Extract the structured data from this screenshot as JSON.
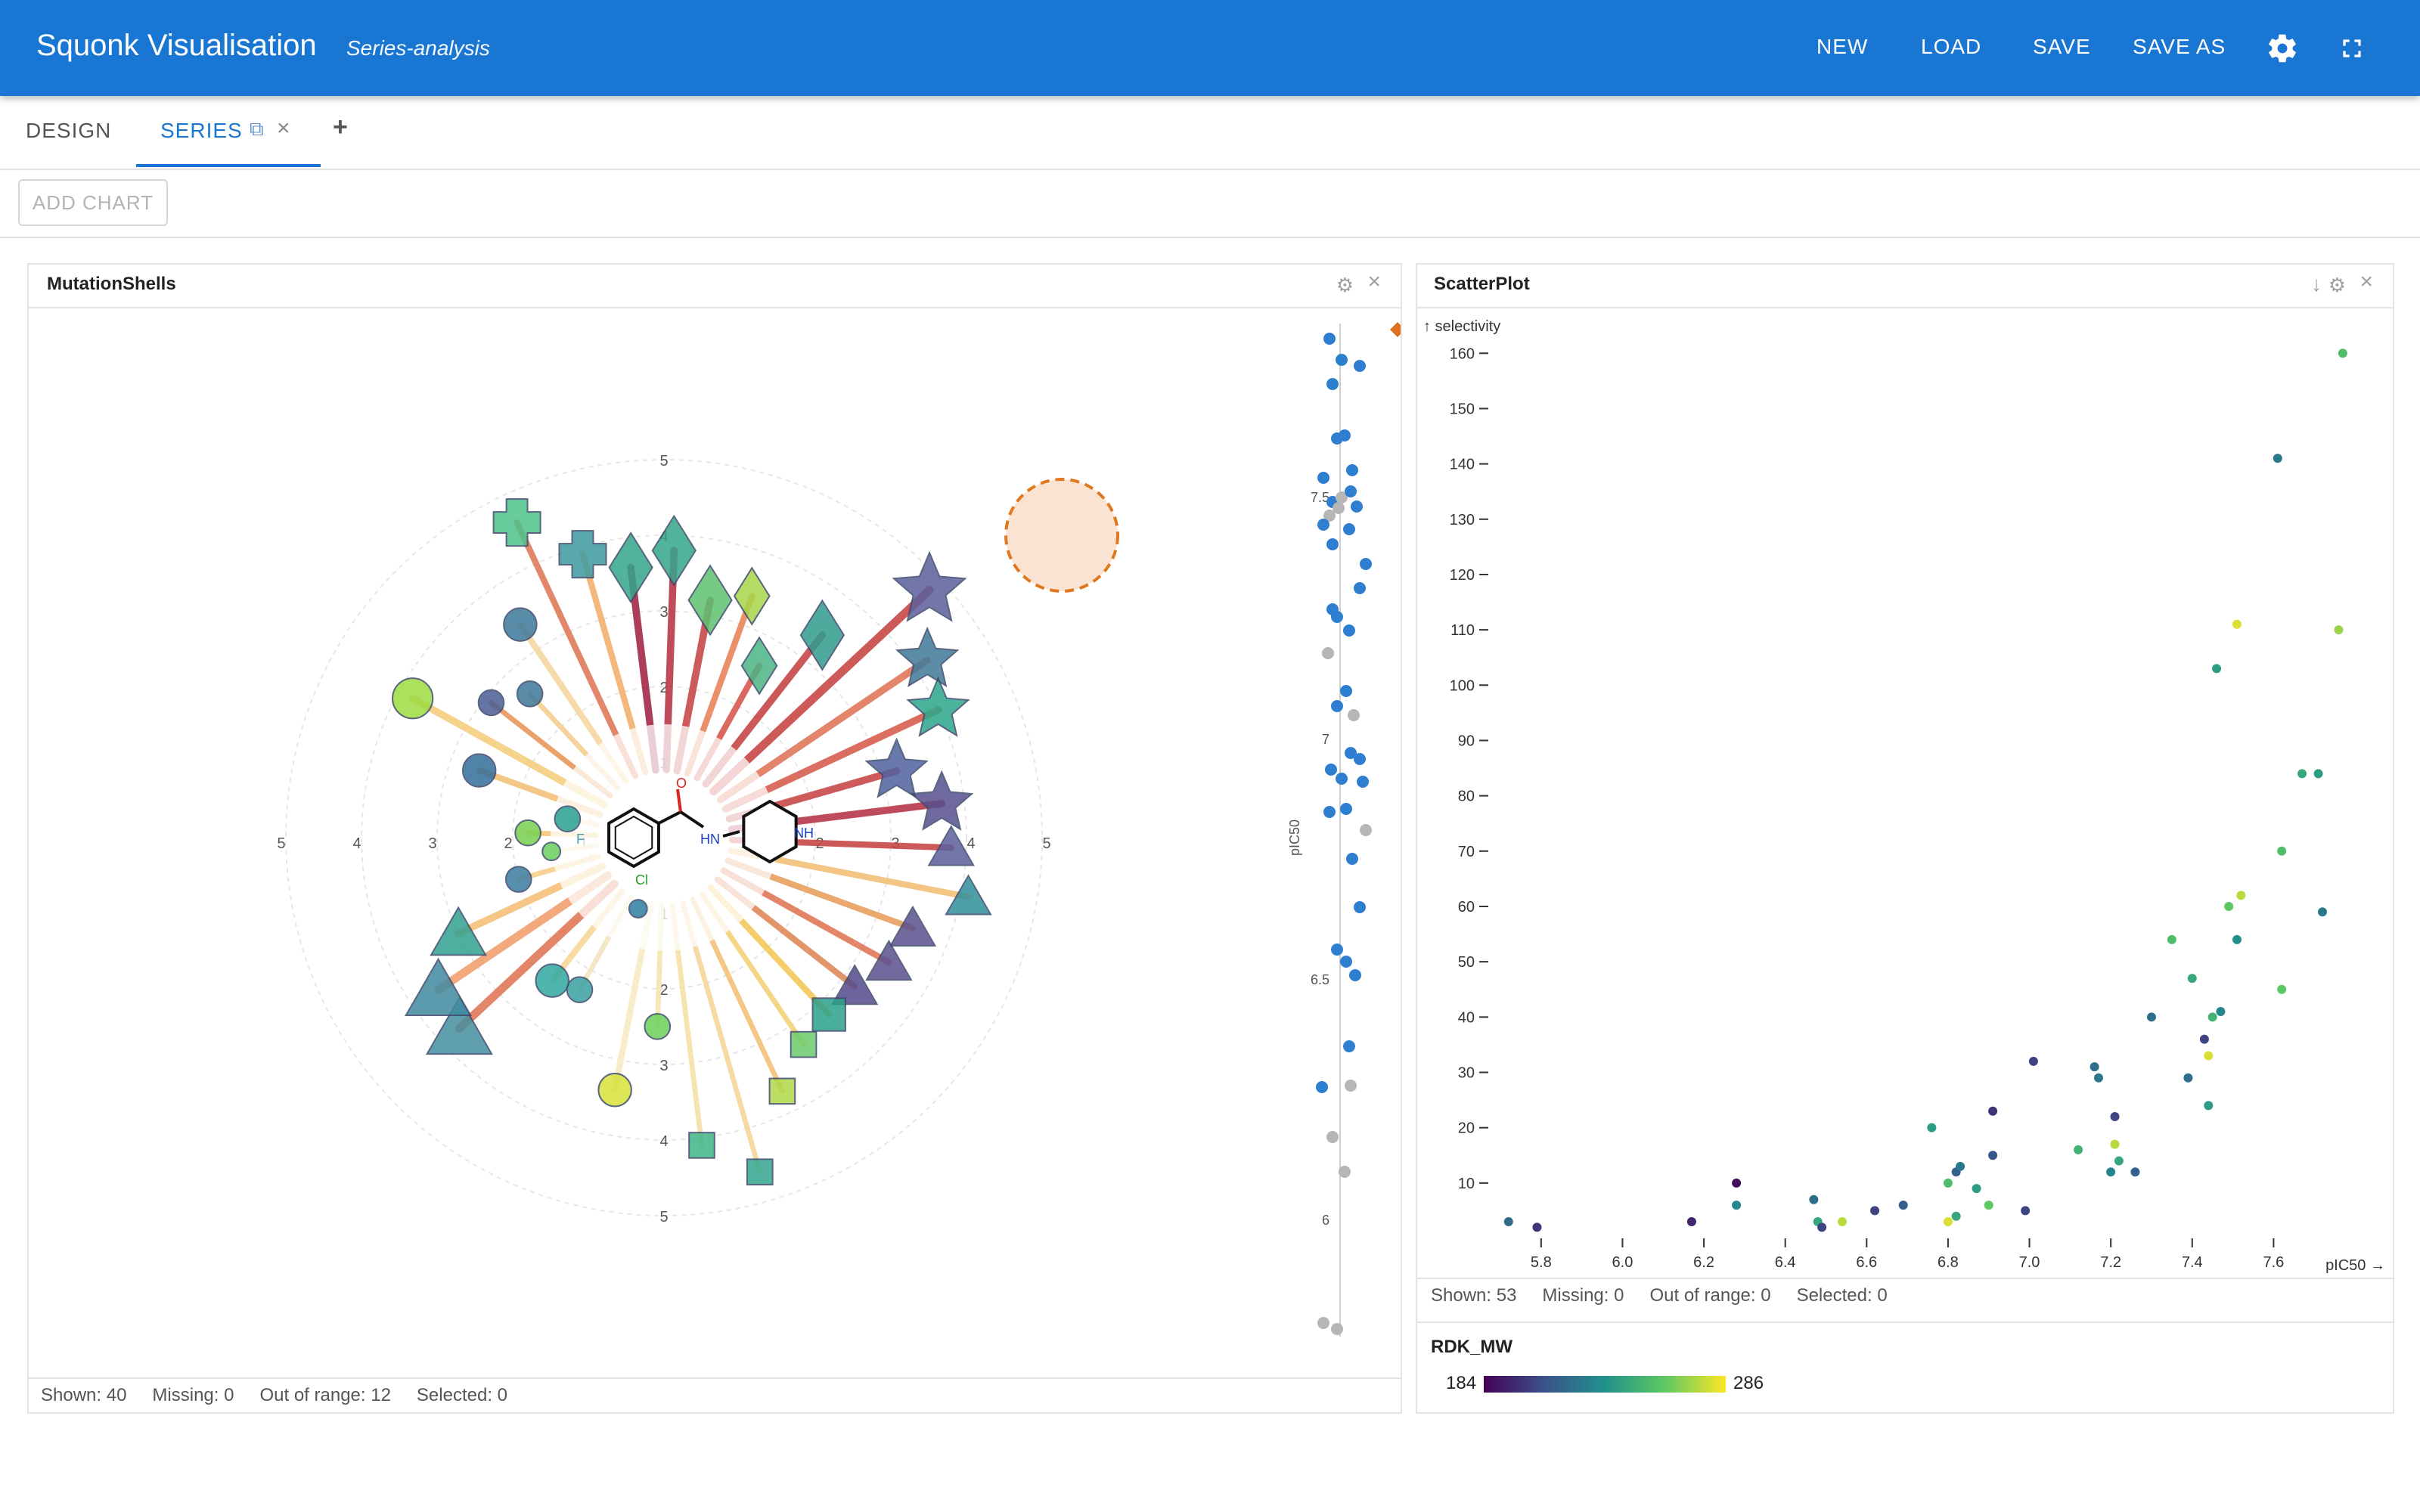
{
  "app": {
    "title": "Squonk Visualisation",
    "view_name": "Series-analysis",
    "nav": {
      "new": "NEW",
      "load": "LOAD",
      "save": "SAVE",
      "save_as": "SAVE AS"
    },
    "colors": {
      "primary": "#1976d2"
    }
  },
  "tabs": {
    "design": "DESIGN",
    "series": "SERIES",
    "series_copy_icon": "⧉",
    "series_close_icon": "×",
    "add_tab": "+"
  },
  "toolbar": {
    "add_chart": "ADD CHART"
  },
  "panels": {
    "mutation": {
      "title": "MutationShells",
      "status": {
        "shown": "Shown: 40",
        "missing": "Missing: 0",
        "out_of_range": "Out of range: 12",
        "selected": "Selected: 0"
      },
      "core_labels": {
        "amide_o": "O",
        "nh": "HN",
        "ring_nh": "NH",
        "cl": "Cl",
        "f": "F"
      },
      "radial_ticks": [
        "5",
        "4",
        "3",
        "2",
        "1"
      ],
      "strip_axis_label": "pIC50",
      "strip_ticks": [
        "7.5",
        "7",
        "6.5",
        "6"
      ]
    },
    "scatter": {
      "title": "ScatterPlot",
      "status": {
        "shown": "Shown: 53",
        "missing": "Missing: 0",
        "out_of_range": "Out of range: 0",
        "selected": "Selected: 0"
      },
      "legend": {
        "title": "RDK_MW",
        "min": "184",
        "max": "286"
      }
    }
  },
  "chart_data": [
    {
      "type": "scatter",
      "title": "MutationShells",
      "radial_axis_range": [
        0,
        5
      ],
      "points": [
        {
          "shape": "plus",
          "color": "#4ec38b",
          "size": 3,
          "line": "#e07b5a"
        },
        {
          "shape": "plus",
          "color": "#3d9aa0",
          "size": 3,
          "line": "#f3b070"
        },
        {
          "shape": "diamond",
          "color": "#35a68d",
          "size": 4,
          "line": "#a52a4a"
        },
        {
          "shape": "diamond",
          "color": "#35a68d",
          "size": 4,
          "line": "#b83a4a"
        },
        {
          "shape": "diamond",
          "color": "#5dc26f",
          "size": 4,
          "line": "#c94a4a"
        },
        {
          "shape": "diamond",
          "color": "#a7d64a",
          "size": 3,
          "line": "#e8855a"
        },
        {
          "shape": "diamond",
          "color": "#4bb586",
          "size": 3,
          "line": "#d65a50"
        },
        {
          "shape": "diamond",
          "color": "#2f9c8c",
          "size": 4,
          "line": "#c74848"
        },
        {
          "shape": "star",
          "color": "#5b5f9b",
          "size": 5,
          "line": "#c84848"
        },
        {
          "shape": "star",
          "color": "#3f7a9a",
          "size": 4,
          "line": "#e0785a"
        },
        {
          "shape": "star",
          "color": "#2aa88a",
          "size": 4,
          "line": "#d66050"
        },
        {
          "shape": "star",
          "color": "#5062a0",
          "size": 4,
          "line": "#c84a4a"
        },
        {
          "shape": "star",
          "color": "#574f8f",
          "size": 4,
          "line": "#b8384a"
        },
        {
          "shape": "triangle",
          "color": "#5a5f9a",
          "size": 3,
          "line": "#c84848"
        },
        {
          "shape": "triangle",
          "color": "#2f8f9a",
          "size": 3,
          "line": "#f3c07a"
        },
        {
          "shape": "triangle",
          "color": "#5a4f8f",
          "size": 3,
          "line": "#e8a060"
        },
        {
          "shape": "triangle",
          "color": "#5a4f8f",
          "size": 3,
          "line": "#e07858"
        },
        {
          "shape": "triangle",
          "color": "#544a8c",
          "size": 3,
          "line": "#e08a5a"
        },
        {
          "shape": "square",
          "color": "#2aa08a",
          "size": 3,
          "line": "#f5c85a"
        },
        {
          "shape": "square",
          "color": "#6ccb6a",
          "size": 2,
          "line": "#f3d27a"
        },
        {
          "shape": "square",
          "color": "#b0d84a",
          "size": 2,
          "line": "#f3c27a"
        },
        {
          "shape": "square",
          "color": "#35a890",
          "size": 2,
          "line": "#f7d59a"
        },
        {
          "shape": "square",
          "color": "#3fb486",
          "size": 2,
          "line": "#f5e2a8"
        },
        {
          "shape": "circle",
          "color": "#6cd05a",
          "size": 2,
          "line": "#f5e6b0"
        },
        {
          "shape": "circle",
          "color": "#d6e23a",
          "size": 3,
          "line": "#f8eac4"
        },
        {
          "shape": "circle",
          "color": "#2d7fa0",
          "size": 1,
          "line": "#f4e2c2"
        },
        {
          "shape": "circle",
          "color": "#3aa0a0",
          "size": 2,
          "line": "#f5e4c2"
        },
        {
          "shape": "circle",
          "color": "#30a8a0",
          "size": 3,
          "line": "#f7d89a"
        },
        {
          "shape": "triangle",
          "color": "#458fa0",
          "size": 5,
          "line": "#e07858"
        },
        {
          "shape": "triangle",
          "color": "#408aa0",
          "size": 5,
          "line": "#f0a070"
        },
        {
          "shape": "triangle",
          "color": "#30a090",
          "size": 4,
          "line": "#f5c078"
        },
        {
          "shape": "circle",
          "color": "#3d7ca0",
          "size": 2,
          "line": "#f5d08a"
        },
        {
          "shape": "circle",
          "color": "#6ad060",
          "size": 1,
          "line": "#f7e0a8"
        },
        {
          "shape": "circle",
          "color": "#78d050",
          "size": 2,
          "line": "#f5c87a"
        },
        {
          "shape": "circle",
          "color": "#28a090",
          "size": 2,
          "line": "#f5dcaa"
        },
        {
          "shape": "circle",
          "color": "#336d9a",
          "size": 3,
          "line": "#f3c27a"
        },
        {
          "shape": "circle",
          "color": "#9ddc40",
          "size": 4,
          "line": "#f5cf80"
        },
        {
          "shape": "circle",
          "color": "#4a5e96",
          "size": 2,
          "line": "#e8985a"
        },
        {
          "shape": "circle",
          "color": "#3d7899",
          "size": 2,
          "line": "#f3d090"
        },
        {
          "shape": "circle",
          "color": "#3d7899",
          "size": 3,
          "line": "#f5d8a0"
        }
      ],
      "highlight": "dashed orange circle around two triangles (upper right)"
    },
    {
      "type": "scatter",
      "title": "ScatterPlot",
      "xlabel": "pIC50",
      "ylabel": "selectivity",
      "x_ticks": [
        "5.8",
        "6.0",
        "6.2",
        "6.4",
        "6.6",
        "6.8",
        "7.0",
        "7.2",
        "7.4",
        "7.6"
      ],
      "y_ticks": [
        "10",
        "20",
        "30",
        "40",
        "50",
        "60",
        "70",
        "80",
        "90",
        "100",
        "110",
        "120",
        "130",
        "140",
        "150",
        "160"
      ],
      "xlim": [
        5.7,
        7.8
      ],
      "ylim": [
        0,
        164
      ],
      "color_by": "RDK_MW",
      "color_range": [
        184,
        286
      ],
      "points": [
        {
          "x": 5.72,
          "y": 3,
          "c": 220
        },
        {
          "x": 5.79,
          "y": 2,
          "c": 200
        },
        {
          "x": 6.17,
          "y": 3,
          "c": 195
        },
        {
          "x": 6.28,
          "y": 10,
          "c": 188
        },
        {
          "x": 6.28,
          "y": 6,
          "c": 230
        },
        {
          "x": 6.47,
          "y": 7,
          "c": 220
        },
        {
          "x": 6.48,
          "y": 3,
          "c": 245
        },
        {
          "x": 6.49,
          "y": 2,
          "c": 205
        },
        {
          "x": 6.54,
          "y": 3,
          "c": 275
        },
        {
          "x": 6.62,
          "y": 5,
          "c": 205
        },
        {
          "x": 6.69,
          "y": 6,
          "c": 215
        },
        {
          "x": 6.76,
          "y": 20,
          "c": 240
        },
        {
          "x": 6.8,
          "y": 10,
          "c": 255
        },
        {
          "x": 6.8,
          "y": 3,
          "c": 280
        },
        {
          "x": 6.82,
          "y": 4,
          "c": 245
        },
        {
          "x": 6.82,
          "y": 12,
          "c": 215
        },
        {
          "x": 6.83,
          "y": 13,
          "c": 225
        },
        {
          "x": 6.87,
          "y": 9,
          "c": 240
        },
        {
          "x": 6.9,
          "y": 6,
          "c": 260
        },
        {
          "x": 6.91,
          "y": 15,
          "c": 210
        },
        {
          "x": 6.91,
          "y": 23,
          "c": 200
        },
        {
          "x": 6.99,
          "y": 5,
          "c": 205
        },
        {
          "x": 7.01,
          "y": 32,
          "c": 205
        },
        {
          "x": 7.12,
          "y": 16,
          "c": 250
        },
        {
          "x": 7.16,
          "y": 31,
          "c": 220
        },
        {
          "x": 7.17,
          "y": 29,
          "c": 225
        },
        {
          "x": 7.2,
          "y": 12,
          "c": 230
        },
        {
          "x": 7.21,
          "y": 22,
          "c": 205
        },
        {
          "x": 7.21,
          "y": 17,
          "c": 275
        },
        {
          "x": 7.22,
          "y": 14,
          "c": 245
        },
        {
          "x": 7.26,
          "y": 12,
          "c": 215
        },
        {
          "x": 7.3,
          "y": 40,
          "c": 220
        },
        {
          "x": 7.35,
          "y": 54,
          "c": 255
        },
        {
          "x": 7.39,
          "y": 29,
          "c": 220
        },
        {
          "x": 7.4,
          "y": 47,
          "c": 245
        },
        {
          "x": 7.43,
          "y": 36,
          "c": 205
        },
        {
          "x": 7.44,
          "y": 33,
          "c": 280
        },
        {
          "x": 7.44,
          "y": 24,
          "c": 240
        },
        {
          "x": 7.45,
          "y": 40,
          "c": 250
        },
        {
          "x": 7.46,
          "y": 103,
          "c": 240
        },
        {
          "x": 7.47,
          "y": 41,
          "c": 230
        },
        {
          "x": 7.49,
          "y": 60,
          "c": 260
        },
        {
          "x": 7.51,
          "y": 111,
          "c": 280
        },
        {
          "x": 7.51,
          "y": 54,
          "c": 235
        },
        {
          "x": 7.52,
          "y": 62,
          "c": 275
        },
        {
          "x": 7.61,
          "y": 141,
          "c": 225
        },
        {
          "x": 7.62,
          "y": 70,
          "c": 255
        },
        {
          "x": 7.62,
          "y": 45,
          "c": 260
        },
        {
          "x": 7.67,
          "y": 84,
          "c": 245
        },
        {
          "x": 7.71,
          "y": 84,
          "c": 240
        },
        {
          "x": 7.72,
          "y": 59,
          "c": 225
        },
        {
          "x": 7.76,
          "y": 110,
          "c": 270
        },
        {
          "x": 7.77,
          "y": 160,
          "c": 255
        }
      ]
    }
  ]
}
